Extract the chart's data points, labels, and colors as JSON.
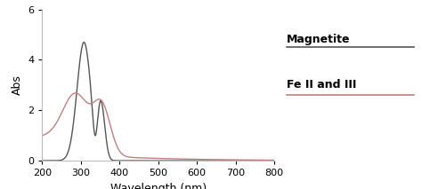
{
  "xlabel": "Wavelength (nm)",
  "ylabel": "Abs",
  "xlim": [
    200,
    800
  ],
  "ylim": [
    0,
    6
  ],
  "yticks": [
    0,
    2,
    4,
    6
  ],
  "xticks": [
    200,
    300,
    400,
    500,
    600,
    700,
    800
  ],
  "magnetite_color": "#555555",
  "feiiiii_color": "#c08080",
  "legend_labels": [
    "Magnetite",
    "Fe II and III"
  ],
  "background_color": "#ffffff",
  "spine_color": "#bbbbbb",
  "xlabel_fontsize": 9,
  "ylabel_fontsize": 9,
  "tick_fontsize": 8,
  "legend_fontsize": 9
}
